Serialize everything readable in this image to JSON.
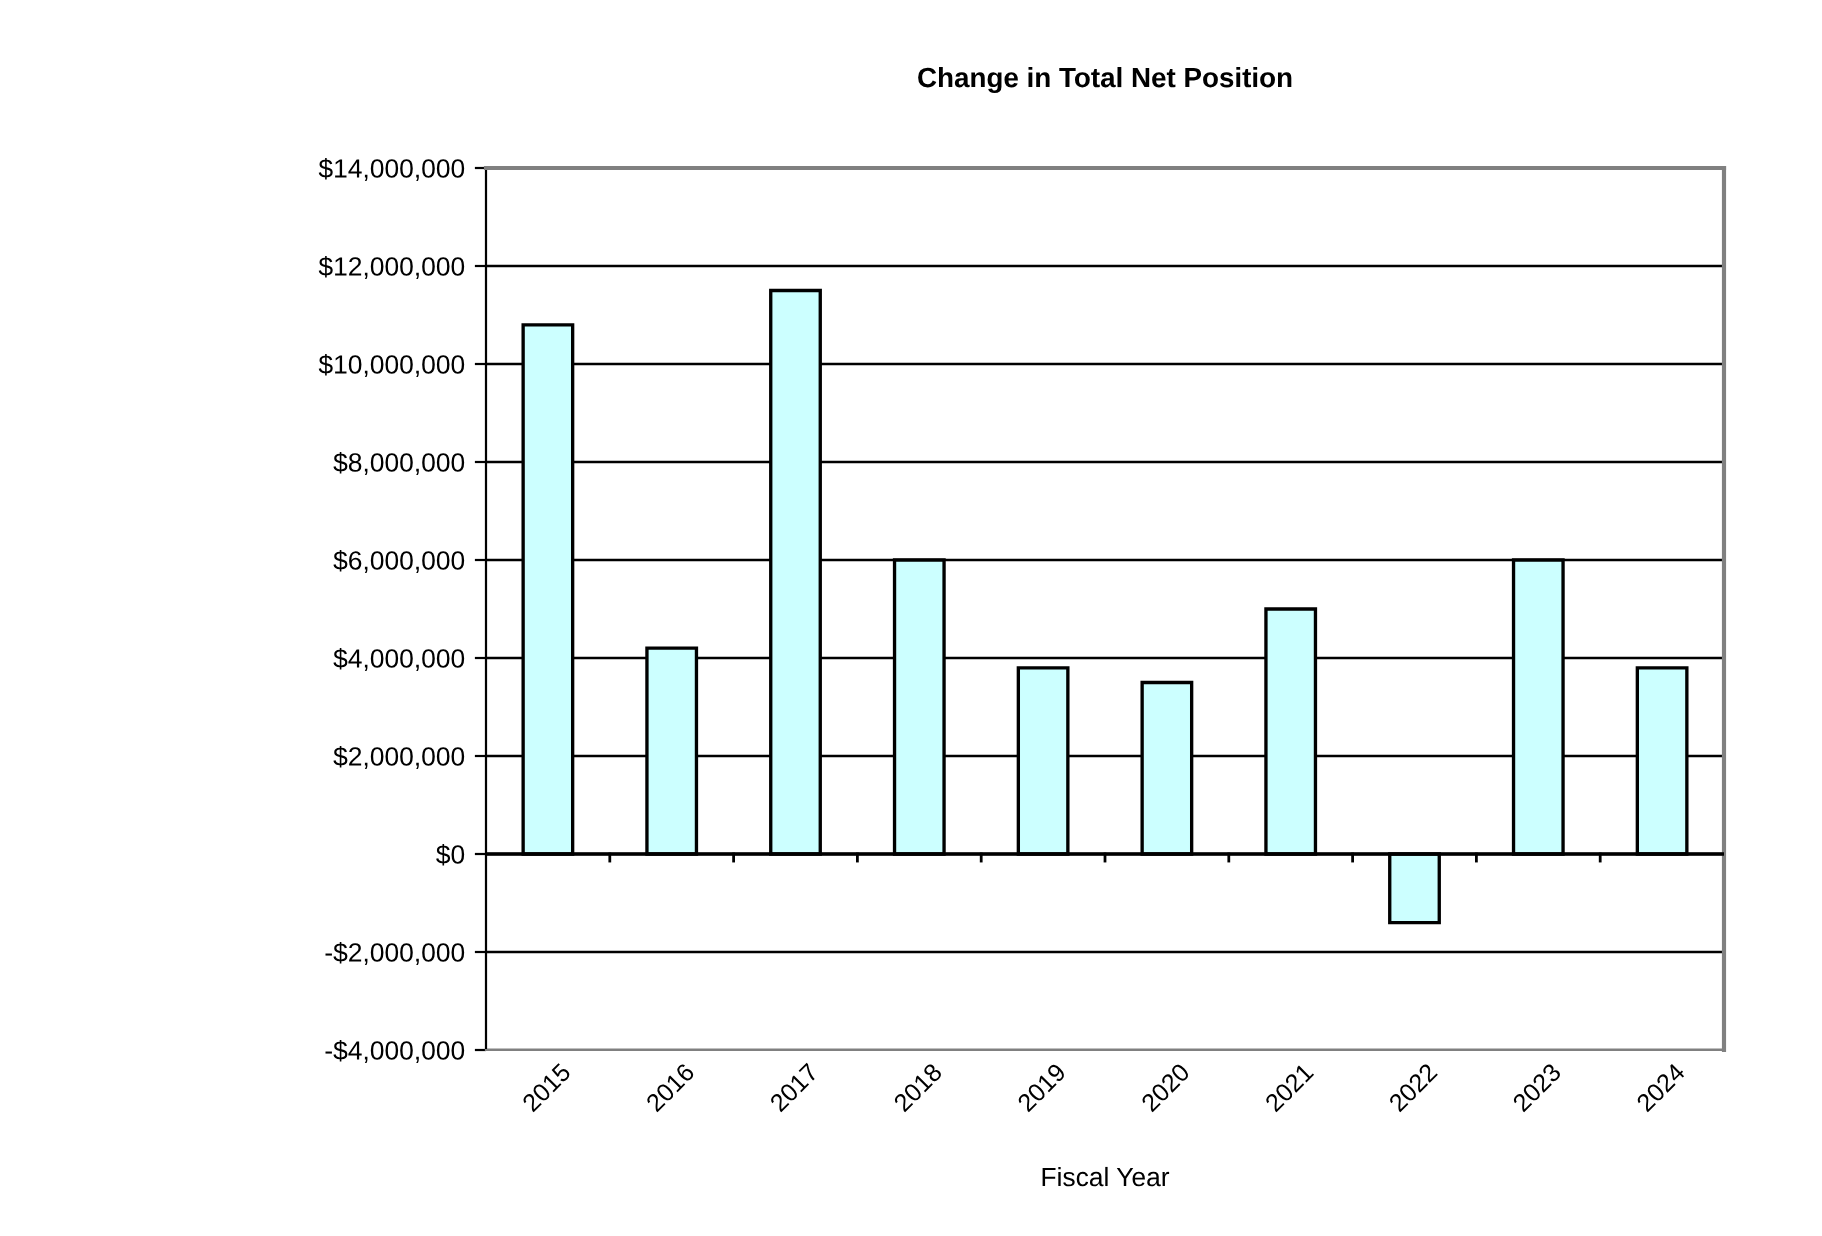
{
  "chart_data": {
    "type": "bar",
    "title": "Change in Total Net Position",
    "xlabel": "Fiscal Year",
    "categories": [
      "2015",
      "2016",
      "2017",
      "2018",
      "2019",
      "2020",
      "2021",
      "2022",
      "2023",
      "2024"
    ],
    "values": [
      10800000,
      4200000,
      11500000,
      6000000,
      3800000,
      3500000,
      5000000,
      -1400000,
      6000000,
      3800000
    ],
    "color": "#ccffff",
    "ylim": [
      -4000000,
      14000000
    ],
    "yticks": [
      {
        "value": -4000000,
        "label": "-$4,000,000"
      },
      {
        "value": -2000000,
        "label": "-$2,000,000"
      },
      {
        "value": 0,
        "label": "$0"
      },
      {
        "value": 2000000,
        "label": "$2,000,000"
      },
      {
        "value": 4000000,
        "label": "$4,000,000"
      },
      {
        "value": 6000000,
        "label": "$6,000,000"
      },
      {
        "value": 8000000,
        "label": "$8,000,000"
      },
      {
        "value": 10000000,
        "label": "$10,000,000"
      },
      {
        "value": 12000000,
        "label": "$12,000,000"
      },
      {
        "value": 14000000,
        "label": "$14,000,000"
      }
    ],
    "grid": "y"
  }
}
